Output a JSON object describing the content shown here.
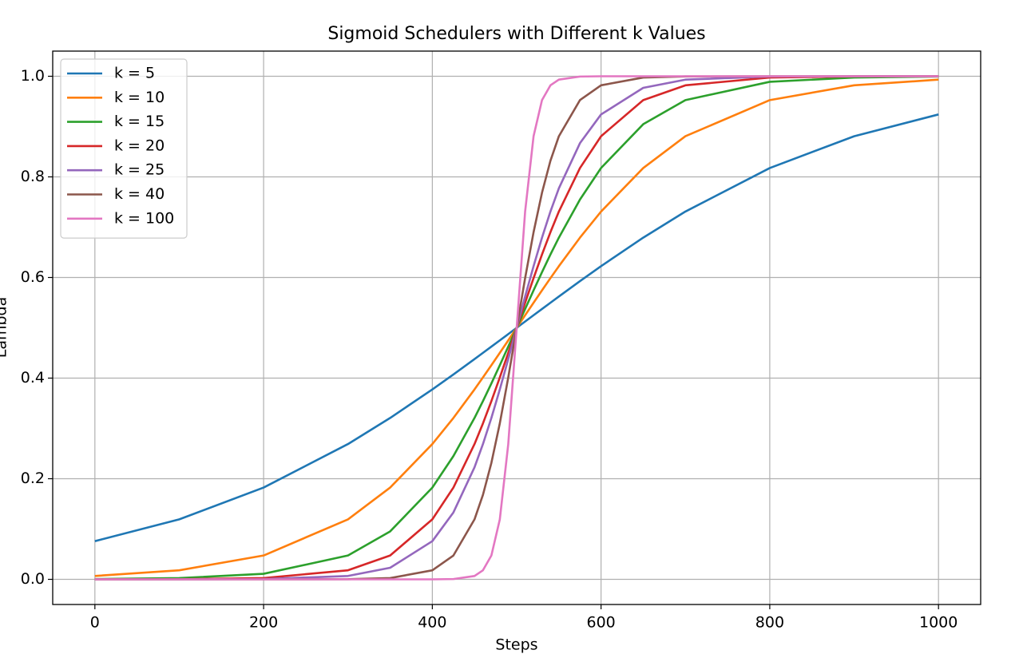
{
  "chart_data": {
    "type": "line",
    "title": "Sigmoid Schedulers with Different k Values",
    "x_label": "Steps",
    "y_label": "Lambda",
    "x": [
      0,
      100,
      200,
      300,
      350,
      400,
      425,
      450,
      460,
      470,
      480,
      490,
      500,
      510,
      520,
      530,
      540,
      550,
      575,
      600,
      650,
      700,
      800,
      900,
      1000
    ],
    "series": [
      {
        "name": "k = 5",
        "color": "#1f77b4",
        "values": [
          0.0759,
          0.1192,
          0.1824,
          0.2689,
          0.3208,
          0.3775,
          0.4073,
          0.4378,
          0.4502,
          0.4626,
          0.475,
          0.4875,
          0.5,
          0.5125,
          0.525,
          0.5374,
          0.5498,
          0.5622,
          0.5927,
          0.6225,
          0.6792,
          0.7311,
          0.8176,
          0.8808,
          0.9241
        ]
      },
      {
        "name": "k = 10",
        "color": "#ff7f0e",
        "values": [
          0.0067,
          0.018,
          0.0474,
          0.1192,
          0.1824,
          0.2689,
          0.3208,
          0.3775,
          0.4013,
          0.4256,
          0.4502,
          0.475,
          0.5,
          0.525,
          0.5498,
          0.5744,
          0.5987,
          0.6225,
          0.6792,
          0.7311,
          0.8176,
          0.8808,
          0.9526,
          0.982,
          0.9933
        ]
      },
      {
        "name": "k = 15",
        "color": "#2ca02c",
        "values": [
          0.0006,
          0.0025,
          0.011,
          0.0474,
          0.0953,
          0.1824,
          0.2451,
          0.3208,
          0.3543,
          0.3894,
          0.4256,
          0.4626,
          0.5,
          0.5374,
          0.5744,
          0.6106,
          0.6457,
          0.6792,
          0.7549,
          0.8176,
          0.9047,
          0.9526,
          0.989,
          0.9975,
          0.9994
        ]
      },
      {
        "name": "k = 20",
        "color": "#d62728",
        "values": [
          0,
          0.0003,
          0.0025,
          0.018,
          0.0474,
          0.1192,
          0.1824,
          0.2689,
          0.31,
          0.3543,
          0.4013,
          0.4502,
          0.5,
          0.5498,
          0.5987,
          0.6457,
          0.69,
          0.7311,
          0.8176,
          0.8808,
          0.9526,
          0.982,
          0.9975,
          0.9997,
          1
        ]
      },
      {
        "name": "k = 25",
        "color": "#9467bd",
        "values": [
          0,
          0,
          0.0006,
          0.0067,
          0.023,
          0.0759,
          0.133,
          0.2227,
          0.2689,
          0.3208,
          0.3775,
          0.4378,
          0.5,
          0.5622,
          0.6225,
          0.6792,
          0.7311,
          0.7773,
          0.867,
          0.9241,
          0.977,
          0.9933,
          0.9994,
          1,
          1
        ]
      },
      {
        "name": "k = 40",
        "color": "#8c564b",
        "values": [
          0,
          0,
          0,
          0.0003,
          0.0025,
          0.018,
          0.0474,
          0.1192,
          0.168,
          0.2315,
          0.31,
          0.4013,
          0.5,
          0.5987,
          0.69,
          0.7685,
          0.832,
          0.8808,
          0.9526,
          0.982,
          0.9975,
          0.9997,
          1,
          1,
          1
        ]
      },
      {
        "name": "k = 100",
        "color": "#e377c2",
        "values": [
          0,
          0,
          0,
          0,
          0,
          0,
          0.0006,
          0.0067,
          0.018,
          0.0474,
          0.1192,
          0.2689,
          0.5,
          0.7311,
          0.8808,
          0.9526,
          0.982,
          0.9933,
          0.9994,
          1,
          1,
          1,
          1,
          1,
          1
        ]
      }
    ],
    "xlim": [
      -50,
      1050
    ],
    "ylim": [
      -0.05,
      1.05
    ],
    "xticks": [
      0,
      200,
      400,
      600,
      800,
      1000
    ],
    "yticks": [
      {
        "value": 0,
        "label": "0.0"
      },
      0.2,
      0.4,
      0.6,
      0.8,
      {
        "value": 1,
        "label": "1.0"
      }
    ],
    "grid": true,
    "legend": "upper-left"
  }
}
